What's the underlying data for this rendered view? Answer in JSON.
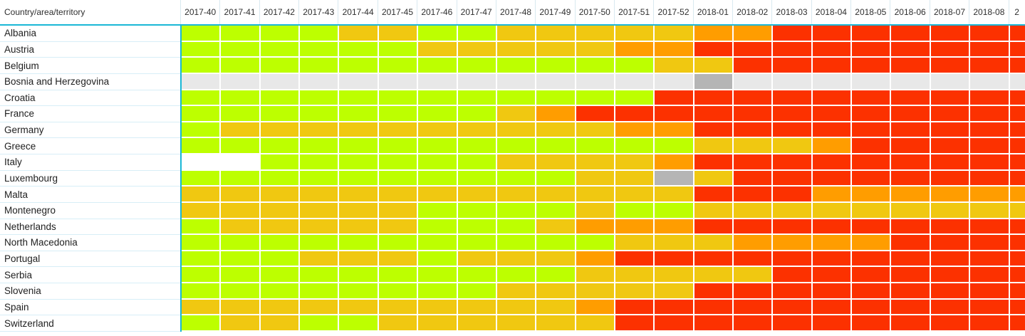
{
  "header": {
    "corner_label": "Country/area/territory"
  },
  "colors": {
    "accent_line": "#1ab7d6",
    "row_separator": "#d7eef7",
    "grid_line": "#ffffff"
  },
  "chart_data": {
    "type": "heatmap",
    "title": "",
    "corner_label": "Country/area/territory",
    "x_labels": [
      "2017-40",
      "2017-41",
      "2017-42",
      "2017-43",
      "2017-44",
      "2017-45",
      "2017-46",
      "2017-47",
      "2017-48",
      "2017-49",
      "2017-50",
      "2017-51",
      "2017-52",
      "2018-01",
      "2018-02",
      "2018-03",
      "2018-04",
      "2018-05",
      "2018-06",
      "2018-07",
      "2018-08",
      "2"
    ],
    "y_labels": [
      "Albania",
      "Austria",
      "Belgium",
      "Bosnia and Herzegovina",
      "Croatia",
      "France",
      "Germany",
      "Greece",
      "Italy",
      "Luxembourg",
      "Malta",
      "Montenegro",
      "Netherlands",
      "North Macedonia",
      "Portugal",
      "Serbia",
      "Slovenia",
      "Spain",
      "Switzerland"
    ],
    "legend": {
      "G": "#bdff00",
      "Y": "#f0c811",
      "O": "#ff9d00",
      "R": "#fc3100",
      "LG": "#e8e8e8",
      "DG": "#b5b5b5",
      "W": "#ffffff"
    },
    "legend_meaning": {
      "G": "low-green",
      "Y": "medium-yellow",
      "O": "high-orange",
      "R": "very-high-red",
      "LG": "no-data-gray",
      "DG": "gray-dark",
      "W": "blank"
    },
    "matrix": [
      [
        "G",
        "G",
        "G",
        "G",
        "Y",
        "Y",
        "G",
        "G",
        "Y",
        "Y",
        "Y",
        "Y",
        "Y",
        "O",
        "O",
        "R",
        "R",
        "R",
        "R",
        "R",
        "R",
        "R"
      ],
      [
        "G",
        "G",
        "G",
        "G",
        "G",
        "G",
        "Y",
        "Y",
        "Y",
        "Y",
        "Y",
        "O",
        "O",
        "R",
        "R",
        "R",
        "R",
        "R",
        "R",
        "R",
        "R",
        "R"
      ],
      [
        "G",
        "G",
        "G",
        "G",
        "G",
        "G",
        "G",
        "G",
        "G",
        "G",
        "G",
        "G",
        "Y",
        "Y",
        "R",
        "R",
        "R",
        "R",
        "R",
        "R",
        "R",
        "R"
      ],
      [
        "LG",
        "LG",
        "LG",
        "LG",
        "LG",
        "LG",
        "LG",
        "LG",
        "LG",
        "LG",
        "LG",
        "LG",
        "LG",
        "DG",
        "LG",
        "LG",
        "LG",
        "LG",
        "LG",
        "LG",
        "LG",
        "LG"
      ],
      [
        "G",
        "G",
        "G",
        "G",
        "G",
        "G",
        "G",
        "G",
        "G",
        "G",
        "G",
        "G",
        "R",
        "R",
        "R",
        "R",
        "R",
        "R",
        "R",
        "R",
        "R",
        "R"
      ],
      [
        "G",
        "G",
        "G",
        "G",
        "G",
        "G",
        "G",
        "G",
        "Y",
        "O",
        "R",
        "R",
        "R",
        "R",
        "R",
        "R",
        "R",
        "R",
        "R",
        "R",
        "R",
        "R"
      ],
      [
        "G",
        "Y",
        "Y",
        "Y",
        "Y",
        "Y",
        "Y",
        "Y",
        "Y",
        "Y",
        "Y",
        "O",
        "O",
        "R",
        "R",
        "R",
        "R",
        "R",
        "R",
        "R",
        "R",
        "R"
      ],
      [
        "G",
        "G",
        "G",
        "G",
        "G",
        "G",
        "G",
        "G",
        "G",
        "G",
        "G",
        "G",
        "G",
        "Y",
        "Y",
        "Y",
        "O",
        "R",
        "R",
        "R",
        "R",
        "R"
      ],
      [
        "W",
        "W",
        "G",
        "G",
        "G",
        "G",
        "G",
        "G",
        "Y",
        "Y",
        "Y",
        "Y",
        "O",
        "R",
        "R",
        "R",
        "R",
        "R",
        "R",
        "R",
        "R",
        "R"
      ],
      [
        "G",
        "G",
        "G",
        "G",
        "G",
        "G",
        "G",
        "G",
        "G",
        "G",
        "Y",
        "Y",
        "DG",
        "Y",
        "R",
        "R",
        "R",
        "R",
        "R",
        "R",
        "R",
        "R"
      ],
      [
        "Y",
        "Y",
        "Y",
        "Y",
        "Y",
        "Y",
        "Y",
        "Y",
        "Y",
        "Y",
        "Y",
        "Y",
        "Y",
        "R",
        "R",
        "R",
        "O",
        "O",
        "O",
        "O",
        "O",
        "O"
      ],
      [
        "Y",
        "Y",
        "Y",
        "Y",
        "Y",
        "Y",
        "G",
        "G",
        "G",
        "G",
        "Y",
        "G",
        "G",
        "Y",
        "Y",
        "Y",
        "Y",
        "Y",
        "Y",
        "Y",
        "Y",
        "Y"
      ],
      [
        "G",
        "Y",
        "Y",
        "Y",
        "Y",
        "Y",
        "G",
        "G",
        "G",
        "Y",
        "O",
        "O",
        "O",
        "R",
        "R",
        "R",
        "R",
        "R",
        "R",
        "R",
        "R",
        "R"
      ],
      [
        "G",
        "G",
        "G",
        "G",
        "G",
        "G",
        "G",
        "G",
        "G",
        "G",
        "G",
        "Y",
        "Y",
        "Y",
        "O",
        "O",
        "O",
        "O",
        "R",
        "R",
        "R",
        "R"
      ],
      [
        "G",
        "G",
        "G",
        "Y",
        "Y",
        "Y",
        "G",
        "Y",
        "Y",
        "Y",
        "O",
        "R",
        "R",
        "R",
        "R",
        "R",
        "R",
        "R",
        "R",
        "R",
        "R",
        "R"
      ],
      [
        "G",
        "G",
        "G",
        "G",
        "G",
        "G",
        "G",
        "G",
        "G",
        "G",
        "Y",
        "Y",
        "Y",
        "Y",
        "Y",
        "R",
        "R",
        "R",
        "R",
        "R",
        "R",
        "R"
      ],
      [
        "G",
        "G",
        "G",
        "G",
        "G",
        "G",
        "G",
        "G",
        "Y",
        "Y",
        "Y",
        "Y",
        "Y",
        "R",
        "R",
        "R",
        "R",
        "R",
        "R",
        "R",
        "R",
        "R"
      ],
      [
        "Y",
        "Y",
        "Y",
        "Y",
        "Y",
        "Y",
        "Y",
        "Y",
        "Y",
        "Y",
        "O",
        "R",
        "R",
        "R",
        "R",
        "R",
        "R",
        "R",
        "R",
        "R",
        "R",
        "R"
      ],
      [
        "G",
        "Y",
        "Y",
        "G",
        "G",
        "Y",
        "Y",
        "Y",
        "Y",
        "Y",
        "Y",
        "R",
        "R",
        "R",
        "R",
        "R",
        "R",
        "R",
        "R",
        "R",
        "R",
        "R"
      ]
    ]
  }
}
